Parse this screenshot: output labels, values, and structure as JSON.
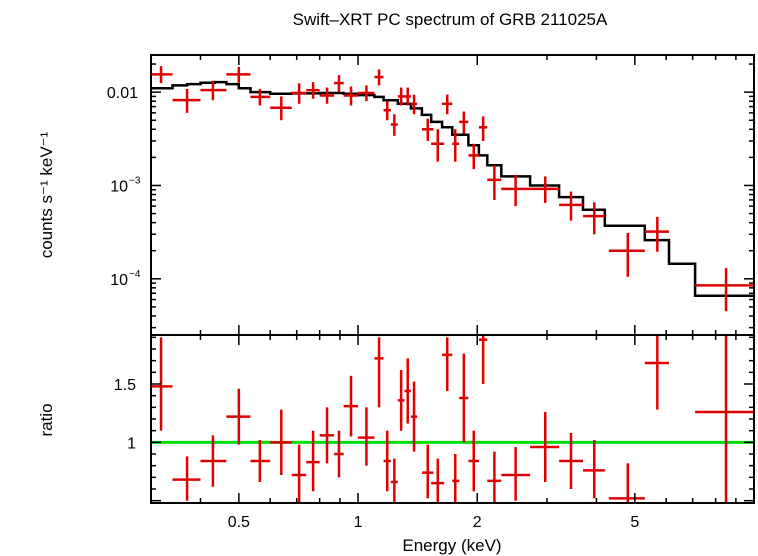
{
  "colors": {
    "data": "#e00000",
    "model": "#000000",
    "reference": "#00e000",
    "frame": "#000000"
  },
  "chart_data": [
    {
      "type": "scatter",
      "panel": "spectrum",
      "title": "Swift–XRT PC spectrum of GRB 211025A",
      "xlabel": "",
      "ylabel": "counts s⁻¹ keV⁻¹",
      "xscale": "log",
      "yscale": "log",
      "xlim": [
        0.3,
        10
      ],
      "ylim": [
        2.5e-05,
        0.025
      ],
      "yticks": [
        {
          "value": 0.01,
          "label": "0.01",
          "sup": ""
        },
        {
          "value": 0.001,
          "label": "10",
          "sup": "−3"
        },
        {
          "value": 0.0001,
          "label": "10",
          "sup": "−4"
        }
      ],
      "series": [
        {
          "kind": "data",
          "points": [
            {
              "x": 0.318,
              "xlo": 0.3,
              "xhi": 0.34,
              "y": 0.0155,
              "ylo": 0.0125,
              "yhi": 0.019
            },
            {
              "x": 0.37,
              "xlo": 0.34,
              "xhi": 0.4,
              "y": 0.0082,
              "ylo": 0.006,
              "yhi": 0.0108
            },
            {
              "x": 0.43,
              "xlo": 0.4,
              "xhi": 0.465,
              "y": 0.0105,
              "ylo": 0.0082,
              "yhi": 0.0132
            },
            {
              "x": 0.5,
              "xlo": 0.465,
              "xhi": 0.535,
              "y": 0.0155,
              "ylo": 0.0126,
              "yhi": 0.0186
            },
            {
              "x": 0.565,
              "xlo": 0.535,
              "xhi": 0.6,
              "y": 0.0089,
              "ylo": 0.0072,
              "yhi": 0.0108
            },
            {
              "x": 0.64,
              "xlo": 0.6,
              "xhi": 0.68,
              "y": 0.0068,
              "ylo": 0.005,
              "yhi": 0.009
            },
            {
              "x": 0.71,
              "xlo": 0.68,
              "xhi": 0.74,
              "y": 0.0098,
              "ylo": 0.0075,
              "yhi": 0.0124
            },
            {
              "x": 0.77,
              "xlo": 0.74,
              "xhi": 0.8,
              "y": 0.0105,
              "ylo": 0.0085,
              "yhi": 0.0128
            },
            {
              "x": 0.835,
              "xlo": 0.8,
              "xhi": 0.87,
              "y": 0.0092,
              "ylo": 0.0075,
              "yhi": 0.0112
            },
            {
              "x": 0.895,
              "xlo": 0.87,
              "xhi": 0.92,
              "y": 0.0125,
              "ylo": 0.01,
              "yhi": 0.0152
            },
            {
              "x": 0.96,
              "xlo": 0.92,
              "xhi": 1.0,
              "y": 0.0092,
              "ylo": 0.0072,
              "yhi": 0.0115
            },
            {
              "x": 1.05,
              "xlo": 1.0,
              "xhi": 1.1,
              "y": 0.0098,
              "ylo": 0.008,
              "yhi": 0.0118
            },
            {
              "x": 1.13,
              "xlo": 1.1,
              "xhi": 1.16,
              "y": 0.0145,
              "ylo": 0.0118,
              "yhi": 0.0175
            },
            {
              "x": 1.185,
              "xlo": 1.16,
              "xhi": 1.21,
              "y": 0.0064,
              "ylo": 0.005,
              "yhi": 0.008
            },
            {
              "x": 1.235,
              "xlo": 1.21,
              "xhi": 1.26,
              "y": 0.0045,
              "ylo": 0.0034,
              "yhi": 0.0058
            },
            {
              "x": 1.285,
              "xlo": 1.26,
              "xhi": 1.31,
              "y": 0.009,
              "ylo": 0.0072,
              "yhi": 0.0112
            },
            {
              "x": 1.335,
              "xlo": 1.31,
              "xhi": 1.36,
              "y": 0.009,
              "ylo": 0.0072,
              "yhi": 0.0112
            },
            {
              "x": 1.385,
              "xlo": 1.36,
              "xhi": 1.41,
              "y": 0.0075,
              "ylo": 0.0058,
              "yhi": 0.0094
            },
            {
              "x": 1.5,
              "xlo": 1.45,
              "xhi": 1.55,
              "y": 0.004,
              "ylo": 0.003,
              "yhi": 0.0052
            },
            {
              "x": 1.59,
              "xlo": 1.53,
              "xhi": 1.65,
              "y": 0.0028,
              "ylo": 0.0018,
              "yhi": 0.004
            },
            {
              "x": 1.68,
              "xlo": 1.63,
              "xhi": 1.73,
              "y": 0.0075,
              "ylo": 0.0058,
              "yhi": 0.0094
            },
            {
              "x": 1.76,
              "xlo": 1.73,
              "xhi": 1.8,
              "y": 0.0028,
              "ylo": 0.0018,
              "yhi": 0.004
            },
            {
              "x": 1.85,
              "xlo": 1.8,
              "xhi": 1.9,
              "y": 0.0048,
              "ylo": 0.0036,
              "yhi": 0.0062
            },
            {
              "x": 1.96,
              "xlo": 1.9,
              "xhi": 2.02,
              "y": 0.0021,
              "ylo": 0.0015,
              "yhi": 0.0028
            },
            {
              "x": 2.07,
              "xlo": 2.02,
              "xhi": 2.12,
              "y": 0.0042,
              "ylo": 0.003,
              "yhi": 0.0055
            },
            {
              "x": 2.21,
              "xlo": 2.12,
              "xhi": 2.3,
              "y": 0.00115,
              "ylo": 0.0007,
              "yhi": 0.00165
            },
            {
              "x": 2.5,
              "xlo": 2.3,
              "xhi": 2.72,
              "y": 0.00092,
              "ylo": 0.0006,
              "yhi": 0.0013
            },
            {
              "x": 2.97,
              "xlo": 2.72,
              "xhi": 3.22,
              "y": 0.00092,
              "ylo": 0.00065,
              "yhi": 0.00125
            },
            {
              "x": 3.45,
              "xlo": 3.22,
              "xhi": 3.7,
              "y": 0.00062,
              "ylo": 0.00042,
              "yhi": 0.00086
            },
            {
              "x": 3.95,
              "xlo": 3.7,
              "xhi": 4.2,
              "y": 0.00047,
              "ylo": 0.0003,
              "yhi": 0.00066
            },
            {
              "x": 4.8,
              "xlo": 4.3,
              "xhi": 5.3,
              "y": 0.0002,
              "ylo": 0.000105,
              "yhi": 0.00031
            },
            {
              "x": 5.7,
              "xlo": 5.3,
              "xhi": 6.1,
              "y": 0.00032,
              "ylo": 0.000195,
              "yhi": 0.00046
            },
            {
              "x": 8.5,
              "xlo": 7.1,
              "xhi": 10.0,
              "y": 8.5e-05,
              "ylo": 4.5e-05,
              "yhi": 0.00013
            }
          ]
        },
        {
          "kind": "model",
          "steps": [
            {
              "x0": 0.3,
              "x1": 0.34,
              "y": 0.011
            },
            {
              "x0": 0.34,
              "x1": 0.37,
              "y": 0.0118
            },
            {
              "x0": 0.37,
              "x1": 0.4,
              "y": 0.0122
            },
            {
              "x0": 0.4,
              "x1": 0.435,
              "y": 0.0126
            },
            {
              "x0": 0.435,
              "x1": 0.465,
              "y": 0.0128
            },
            {
              "x0": 0.465,
              "x1": 0.5,
              "y": 0.0122
            },
            {
              "x0": 0.5,
              "x1": 0.535,
              "y": 0.011
            },
            {
              "x0": 0.535,
              "x1": 0.6,
              "y": 0.01
            },
            {
              "x0": 0.6,
              "x1": 0.68,
              "y": 0.0096
            },
            {
              "x0": 0.68,
              "x1": 0.8,
              "y": 0.0097
            },
            {
              "x0": 0.8,
              "x1": 0.92,
              "y": 0.0098
            },
            {
              "x0": 0.92,
              "x1": 1.0,
              "y": 0.0096
            },
            {
              "x0": 1.0,
              "x1": 1.1,
              "y": 0.0093
            },
            {
              "x0": 1.1,
              "x1": 1.16,
              "y": 0.0089
            },
            {
              "x0": 1.16,
              "x1": 1.26,
              "y": 0.0082
            },
            {
              "x0": 1.26,
              "x1": 1.36,
              "y": 0.0075
            },
            {
              "x0": 1.36,
              "x1": 1.45,
              "y": 0.0067
            },
            {
              "x0": 1.45,
              "x1": 1.53,
              "y": 0.0057
            },
            {
              "x0": 1.53,
              "x1": 1.63,
              "y": 0.0048
            },
            {
              "x0": 1.63,
              "x1": 1.73,
              "y": 0.0042
            },
            {
              "x0": 1.73,
              "x1": 1.9,
              "y": 0.0035
            },
            {
              "x0": 1.9,
              "x1": 2.02,
              "y": 0.0027
            },
            {
              "x0": 2.02,
              "x1": 2.12,
              "y": 0.0021
            },
            {
              "x0": 2.12,
              "x1": 2.3,
              "y": 0.00165
            },
            {
              "x0": 2.3,
              "x1": 2.72,
              "y": 0.00125
            },
            {
              "x0": 2.72,
              "x1": 3.22,
              "y": 0.001
            },
            {
              "x0": 3.22,
              "x1": 3.7,
              "y": 0.00075
            },
            {
              "x0": 3.7,
              "x1": 4.2,
              "y": 0.00055
            },
            {
              "x0": 4.2,
              "x1": 5.3,
              "y": 0.00037
            },
            {
              "x0": 5.3,
              "x1": 6.1,
              "y": 0.00026
            },
            {
              "x0": 6.1,
              "x1": 7.1,
              "y": 0.000145
            },
            {
              "x0": 7.1,
              "x1": 10.0,
              "y": 6.6e-05
            }
          ]
        }
      ]
    },
    {
      "type": "scatter",
      "panel": "ratio",
      "xlabel": "Energy (keV)",
      "ylabel": "ratio",
      "xscale": "log",
      "yscale": "linear",
      "xlim": [
        0.3,
        10
      ],
      "ylim": [
        0.48,
        1.92
      ],
      "xticks": [
        {
          "value": 0.5,
          "label": "0.5"
        },
        {
          "value": 1,
          "label": "1"
        },
        {
          "value": 2,
          "label": "2"
        },
        {
          "value": 5,
          "label": "5"
        }
      ],
      "yticks": [
        {
          "value": 1,
          "label": "1"
        },
        {
          "value": 1.5,
          "label": "1.5"
        }
      ],
      "reference_line": 1,
      "series": [
        {
          "kind": "data",
          "points": [
            {
              "x": 0.318,
              "xlo": 0.3,
              "xhi": 0.34,
              "y": 1.48,
              "ylo": 1.1,
              "yhi": 1.9
            },
            {
              "x": 0.37,
              "xlo": 0.34,
              "xhi": 0.4,
              "y": 0.68,
              "ylo": 0.5,
              "yhi": 0.88
            },
            {
              "x": 0.43,
              "xlo": 0.4,
              "xhi": 0.465,
              "y": 0.84,
              "ylo": 0.62,
              "yhi": 1.06
            },
            {
              "x": 0.5,
              "xlo": 0.465,
              "xhi": 0.535,
              "y": 1.22,
              "ylo": 0.98,
              "yhi": 1.46
            },
            {
              "x": 0.565,
              "xlo": 0.535,
              "xhi": 0.6,
              "y": 0.84,
              "ylo": 0.66,
              "yhi": 1.02
            },
            {
              "x": 0.64,
              "xlo": 0.6,
              "xhi": 0.68,
              "y": 1.0,
              "ylo": 0.72,
              "yhi": 1.28
            },
            {
              "x": 0.71,
              "xlo": 0.68,
              "xhi": 0.74,
              "y": 0.72,
              "ylo": 0.48,
              "yhi": 0.98
            },
            {
              "x": 0.77,
              "xlo": 0.74,
              "xhi": 0.8,
              "y": 0.83,
              "ylo": 0.58,
              "yhi": 1.1
            },
            {
              "x": 0.835,
              "xlo": 0.8,
              "xhi": 0.87,
              "y": 1.06,
              "ylo": 0.82,
              "yhi": 1.3
            },
            {
              "x": 0.895,
              "xlo": 0.87,
              "xhi": 0.92,
              "y": 0.9,
              "ylo": 0.7,
              "yhi": 1.1
            },
            {
              "x": 0.96,
              "xlo": 0.92,
              "xhi": 1.0,
              "y": 1.31,
              "ylo": 1.05,
              "yhi": 1.57
            },
            {
              "x": 1.05,
              "xlo": 1.0,
              "xhi": 1.1,
              "y": 1.04,
              "ylo": 0.8,
              "yhi": 1.3
            },
            {
              "x": 1.13,
              "xlo": 1.1,
              "xhi": 1.16,
              "y": 1.72,
              "ylo": 1.3,
              "yhi": 1.9
            },
            {
              "x": 1.185,
              "xlo": 1.16,
              "xhi": 1.21,
              "y": 0.84,
              "ylo": 0.58,
              "yhi": 1.1
            },
            {
              "x": 1.235,
              "xlo": 1.21,
              "xhi": 1.26,
              "y": 0.66,
              "ylo": 0.48,
              "yhi": 0.86
            },
            {
              "x": 1.285,
              "xlo": 1.26,
              "xhi": 1.31,
              "y": 1.36,
              "ylo": 1.1,
              "yhi": 1.62
            },
            {
              "x": 1.335,
              "xlo": 1.31,
              "xhi": 1.36,
              "y": 1.44,
              "ylo": 1.16,
              "yhi": 1.72
            },
            {
              "x": 1.385,
              "xlo": 1.36,
              "xhi": 1.41,
              "y": 1.22,
              "ylo": 0.92,
              "yhi": 1.52
            },
            {
              "x": 1.5,
              "xlo": 1.45,
              "xhi": 1.55,
              "y": 0.74,
              "ylo": 0.52,
              "yhi": 0.98
            },
            {
              "x": 1.59,
              "xlo": 1.53,
              "xhi": 1.65,
              "y": 0.65,
              "ylo": 0.48,
              "yhi": 0.86
            },
            {
              "x": 1.68,
              "xlo": 1.63,
              "xhi": 1.73,
              "y": 1.75,
              "ylo": 1.44,
              "yhi": 1.9
            },
            {
              "x": 1.76,
              "xlo": 1.73,
              "xhi": 1.8,
              "y": 0.67,
              "ylo": 0.48,
              "yhi": 0.9
            },
            {
              "x": 1.85,
              "xlo": 1.8,
              "xhi": 1.9,
              "y": 1.38,
              "ylo": 1.0,
              "yhi": 1.76
            },
            {
              "x": 1.96,
              "xlo": 1.9,
              "xhi": 2.02,
              "y": 0.84,
              "ylo": 0.58,
              "yhi": 1.1
            },
            {
              "x": 2.07,
              "xlo": 2.02,
              "xhi": 2.12,
              "y": 1.88,
              "ylo": 1.5,
              "yhi": 1.92
            },
            {
              "x": 2.21,
              "xlo": 2.12,
              "xhi": 2.3,
              "y": 0.67,
              "ylo": 0.48,
              "yhi": 0.92
            },
            {
              "x": 2.5,
              "xlo": 2.3,
              "xhi": 2.72,
              "y": 0.72,
              "ylo": 0.5,
              "yhi": 0.96
            },
            {
              "x": 2.97,
              "xlo": 2.72,
              "xhi": 3.22,
              "y": 0.96,
              "ylo": 0.66,
              "yhi": 1.26
            },
            {
              "x": 3.45,
              "xlo": 3.22,
              "xhi": 3.7,
              "y": 0.84,
              "ylo": 0.6,
              "yhi": 1.08
            },
            {
              "x": 3.95,
              "xlo": 3.7,
              "xhi": 4.2,
              "y": 0.76,
              "ylo": 0.52,
              "yhi": 1.02
            },
            {
              "x": 4.8,
              "xlo": 4.3,
              "xhi": 5.3,
              "y": 0.52,
              "ylo": 0.48,
              "yhi": 0.82
            },
            {
              "x": 5.7,
              "xlo": 5.3,
              "xhi": 6.1,
              "y": 1.68,
              "ylo": 1.28,
              "yhi": 1.92
            },
            {
              "x": 8.5,
              "xlo": 7.1,
              "xhi": 10.0,
              "y": 1.26,
              "ylo": 0.48,
              "yhi": 1.92
            }
          ]
        }
      ]
    }
  ]
}
